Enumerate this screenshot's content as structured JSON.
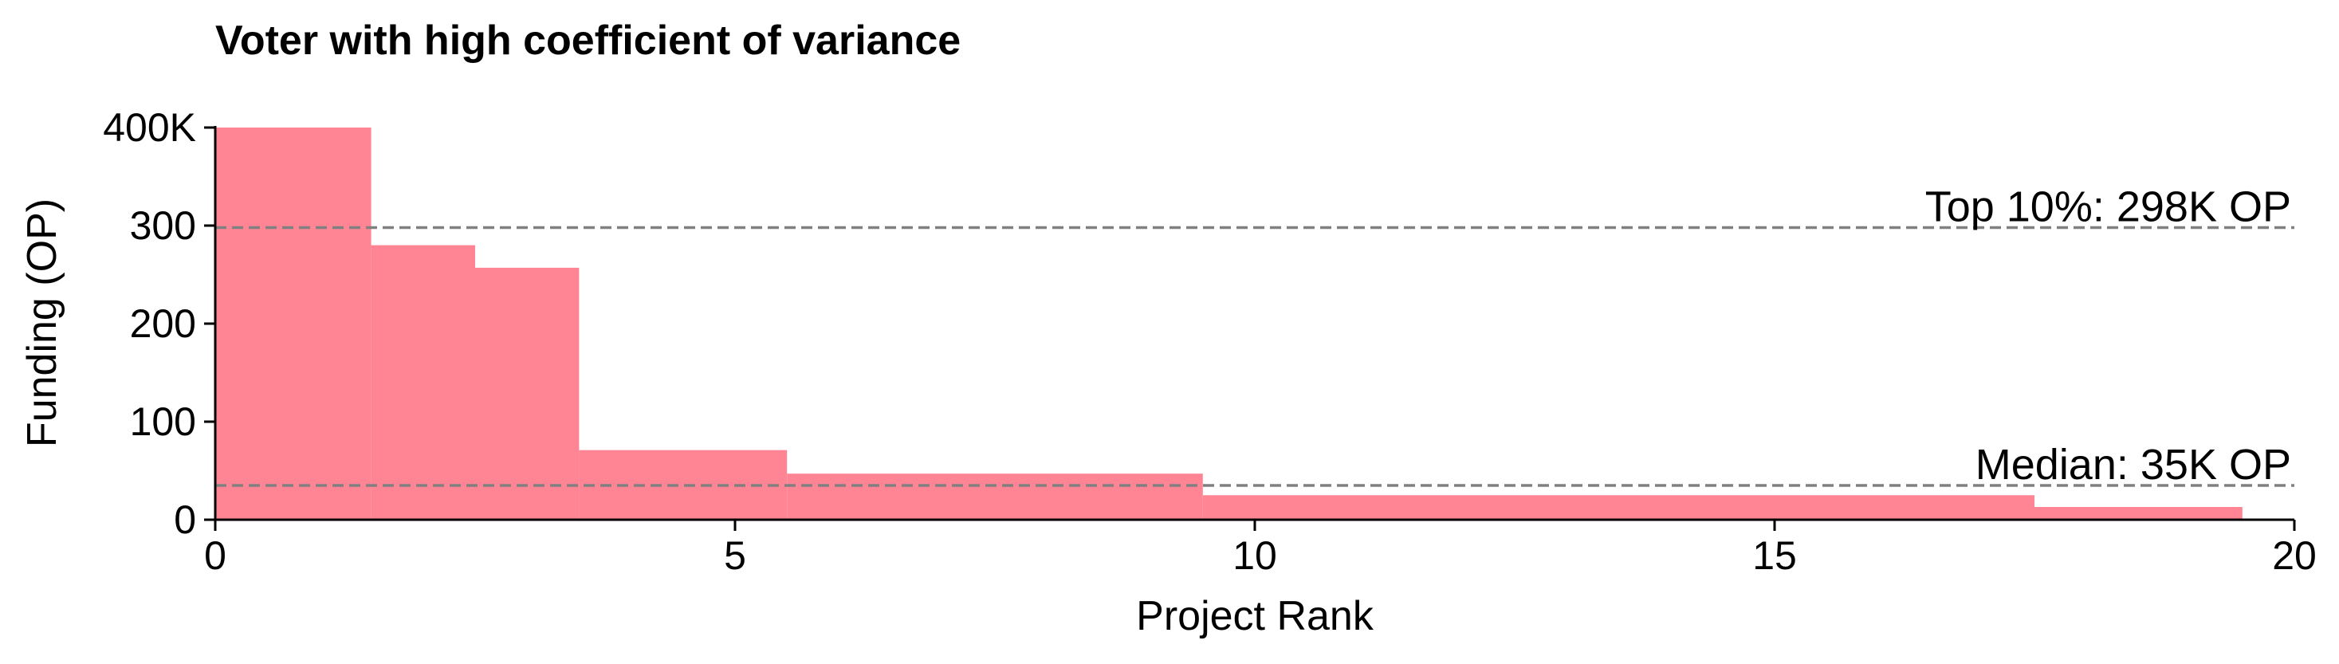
{
  "chart_data": {
    "type": "bar",
    "title": "Voter with high coefficient of variance",
    "xlabel": "Project Rank",
    "ylabel": "Funding (OP)",
    "xlim": [
      0,
      20
    ],
    "ylim": [
      0,
      400
    ],
    "x_ticks": [
      {
        "value": 0,
        "label": "0"
      },
      {
        "value": 5,
        "label": "5"
      },
      {
        "value": 10,
        "label": "10"
      },
      {
        "value": 15,
        "label": "15"
      },
      {
        "value": 20,
        "label": "20"
      }
    ],
    "y_ticks": [
      {
        "value": 0,
        "label": "0"
      },
      {
        "value": 100,
        "label": "100"
      },
      {
        "value": 200,
        "label": "200"
      },
      {
        "value": 300,
        "label": "300"
      },
      {
        "value": 400,
        "label": "400K"
      }
    ],
    "bar_color": "#ff8595",
    "bars": [
      {
        "start": 0,
        "end": 1.5,
        "value": 400
      },
      {
        "start": 1.5,
        "end": 2.5,
        "value": 280
      },
      {
        "start": 2.5,
        "end": 3.5,
        "value": 257
      },
      {
        "start": 3.5,
        "end": 5.5,
        "value": 71
      },
      {
        "start": 5.5,
        "end": 9.5,
        "value": 47
      },
      {
        "start": 9.5,
        "end": 17.5,
        "value": 25
      },
      {
        "start": 17.5,
        "end": 19.5,
        "value": 13
      }
    ],
    "reference_lines": [
      {
        "value": 298,
        "label": "Top 10%: 298K OP",
        "color": "#808080"
      },
      {
        "value": 35,
        "label": "Median: 35K OP",
        "color": "#808080"
      }
    ],
    "grid": false
  }
}
